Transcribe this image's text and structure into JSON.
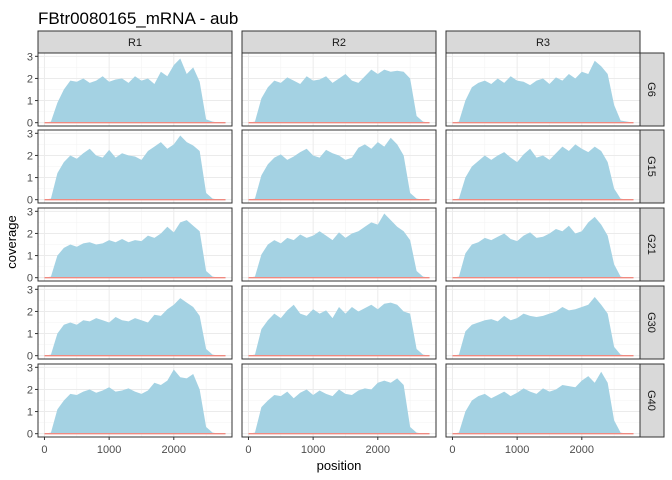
{
  "chart_data": {
    "type": "area",
    "title": "FBtr0080165_mRNA - aub",
    "xlabel": "position",
    "ylabel": "coverage",
    "xlim": [
      -100,
      2900
    ],
    "ylim": [
      -0.15,
      3.15
    ],
    "x_ticks": [
      0,
      1000,
      2000
    ],
    "x_tick_labels": [
      "0",
      "1000",
      "2000"
    ],
    "y_ticks": [
      0,
      1,
      2,
      3
    ],
    "y_tick_labels": [
      "0",
      "1",
      "2",
      "3"
    ],
    "grid": true,
    "facet_columns": [
      "R1",
      "R2",
      "R3"
    ],
    "facet_rows": [
      "G6",
      "G15",
      "G21",
      "G30",
      "G40"
    ],
    "colors": {
      "fill": "#a4d2e3",
      "baseline": "#f08a80",
      "strip": "#d9d9d9",
      "grid": "#ebebeb"
    },
    "x": [
      0,
      100,
      200,
      300,
      400,
      500,
      600,
      700,
      800,
      900,
      1000,
      1100,
      1200,
      1300,
      1400,
      1500,
      1600,
      1700,
      1800,
      1900,
      2000,
      2100,
      2200,
      2300,
      2400,
      2500,
      2600,
      2700,
      2800
    ],
    "panels": [
      {
        "column": "R1",
        "row": "G6",
        "values": [
          0,
          0.05,
          0.9,
          1.5,
          1.9,
          1.85,
          2.0,
          1.8,
          1.9,
          2.1,
          1.85,
          1.95,
          2.0,
          1.8,
          2.1,
          1.9,
          2.0,
          1.75,
          2.3,
          2.1,
          2.6,
          2.9,
          2.2,
          2.5,
          1.85,
          0.15,
          0.05,
          0,
          0
        ]
      },
      {
        "column": "R2",
        "row": "G6",
        "values": [
          0,
          0.05,
          1.1,
          1.6,
          1.9,
          1.8,
          2.05,
          1.9,
          1.75,
          2.1,
          1.9,
          1.95,
          2.1,
          1.8,
          2.0,
          2.2,
          1.9,
          1.8,
          2.1,
          2.4,
          2.2,
          2.4,
          2.3,
          2.35,
          2.3,
          2.0,
          0.3,
          0.05,
          0
        ]
      },
      {
        "column": "R3",
        "row": "G6",
        "values": [
          0,
          0.05,
          1.0,
          1.6,
          1.8,
          1.9,
          1.75,
          2.0,
          1.8,
          2.1,
          1.9,
          1.85,
          1.7,
          1.9,
          2.0,
          1.75,
          2.05,
          1.9,
          2.2,
          2.0,
          2.3,
          2.2,
          2.8,
          2.55,
          2.2,
          0.8,
          0.1,
          0.05,
          0
        ]
      },
      {
        "column": "R1",
        "row": "G15",
        "values": [
          0,
          0.05,
          1.2,
          1.7,
          2.0,
          1.85,
          2.1,
          2.3,
          2.0,
          1.9,
          2.25,
          1.9,
          2.1,
          2.0,
          1.95,
          1.8,
          2.2,
          2.4,
          2.6,
          2.3,
          2.5,
          2.9,
          2.6,
          2.45,
          2.2,
          0.3,
          0.05,
          0,
          0
        ]
      },
      {
        "column": "R2",
        "row": "G15",
        "values": [
          0,
          0.05,
          1.1,
          1.6,
          1.9,
          2.05,
          1.8,
          1.95,
          2.15,
          2.3,
          2.0,
          1.9,
          2.25,
          2.1,
          2.0,
          1.8,
          1.9,
          2.35,
          2.5,
          2.3,
          2.6,
          2.4,
          2.8,
          2.5,
          2.0,
          0.3,
          0.05,
          0,
          0
        ]
      },
      {
        "column": "R3",
        "row": "G15",
        "values": [
          0,
          0.05,
          1.0,
          1.5,
          1.75,
          2.0,
          1.8,
          2.0,
          2.15,
          1.9,
          1.7,
          2.05,
          2.3,
          1.9,
          2.0,
          1.8,
          2.1,
          2.4,
          2.2,
          2.5,
          2.3,
          2.15,
          2.4,
          2.2,
          1.7,
          0.5,
          0.05,
          0,
          0
        ]
      },
      {
        "column": "R1",
        "row": "G21",
        "values": [
          0,
          0.05,
          1.0,
          1.35,
          1.5,
          1.4,
          1.55,
          1.6,
          1.5,
          1.55,
          1.7,
          1.6,
          1.75,
          1.6,
          1.7,
          1.65,
          1.9,
          1.8,
          2.0,
          2.3,
          2.05,
          2.5,
          2.6,
          2.35,
          2.1,
          0.3,
          0.05,
          0,
          0
        ]
      },
      {
        "column": "R2",
        "row": "G21",
        "values": [
          0,
          0.05,
          1.05,
          1.5,
          1.7,
          1.55,
          1.8,
          1.7,
          1.95,
          1.8,
          1.9,
          2.1,
          1.9,
          1.7,
          2.05,
          1.8,
          2.0,
          2.1,
          2.3,
          2.5,
          2.4,
          2.9,
          2.6,
          2.3,
          2.1,
          1.7,
          0.3,
          0.05,
          0
        ]
      },
      {
        "column": "R3",
        "row": "G21",
        "values": [
          0,
          0.05,
          1.1,
          1.5,
          1.6,
          1.8,
          1.7,
          1.85,
          2.0,
          1.75,
          1.65,
          1.9,
          2.05,
          1.8,
          1.85,
          2.0,
          2.2,
          2.1,
          2.35,
          2.0,
          2.1,
          2.5,
          2.75,
          2.4,
          1.9,
          0.6,
          0.05,
          0,
          0
        ]
      },
      {
        "column": "R1",
        "row": "G30",
        "values": [
          0,
          0.05,
          1.0,
          1.4,
          1.5,
          1.4,
          1.6,
          1.55,
          1.7,
          1.6,
          1.5,
          1.75,
          1.6,
          1.55,
          1.7,
          1.6,
          1.5,
          1.85,
          1.8,
          2.1,
          2.3,
          2.6,
          2.4,
          2.2,
          1.8,
          0.3,
          0.05,
          0,
          0
        ]
      },
      {
        "column": "R2",
        "row": "G30",
        "values": [
          0,
          0.05,
          1.2,
          1.6,
          1.9,
          1.7,
          2.05,
          2.3,
          1.9,
          1.8,
          2.1,
          1.9,
          2.05,
          1.7,
          2.2,
          1.9,
          2.2,
          2.0,
          2.15,
          2.3,
          2.1,
          2.35,
          2.4,
          2.3,
          2.0,
          1.9,
          0.3,
          0.05,
          0
        ]
      },
      {
        "column": "R3",
        "row": "G30",
        "values": [
          0,
          0.05,
          1.1,
          1.4,
          1.5,
          1.6,
          1.65,
          1.55,
          1.8,
          1.6,
          1.7,
          1.9,
          1.8,
          1.75,
          1.8,
          1.9,
          2.0,
          2.2,
          2.05,
          2.1,
          2.2,
          2.3,
          2.65,
          2.3,
          1.9,
          0.4,
          0.05,
          0,
          0
        ]
      },
      {
        "column": "R1",
        "row": "G40",
        "values": [
          0,
          0.05,
          1.1,
          1.5,
          1.8,
          1.75,
          1.9,
          2.0,
          1.85,
          1.95,
          2.1,
          1.9,
          1.95,
          2.05,
          1.9,
          1.8,
          1.95,
          2.3,
          2.2,
          2.4,
          2.9,
          2.55,
          2.5,
          2.7,
          2.0,
          0.3,
          0.05,
          0,
          0
        ]
      },
      {
        "column": "R2",
        "row": "G40",
        "values": [
          0,
          0.05,
          1.2,
          1.5,
          1.75,
          1.7,
          1.9,
          1.6,
          1.85,
          2.0,
          1.75,
          1.95,
          1.8,
          1.7,
          2.0,
          1.8,
          1.75,
          1.95,
          2.05,
          2.0,
          2.3,
          2.4,
          2.3,
          2.5,
          2.2,
          0.3,
          0.05,
          0,
          0
        ]
      },
      {
        "column": "R3",
        "row": "G40",
        "values": [
          0,
          0.05,
          1.0,
          1.5,
          1.7,
          1.8,
          1.6,
          1.75,
          1.9,
          1.7,
          1.85,
          2.05,
          1.9,
          1.8,
          2.05,
          1.9,
          2.0,
          2.2,
          2.15,
          2.1,
          2.4,
          2.6,
          2.3,
          2.8,
          2.3,
          0.6,
          0.05,
          0,
          0
        ]
      }
    ]
  }
}
